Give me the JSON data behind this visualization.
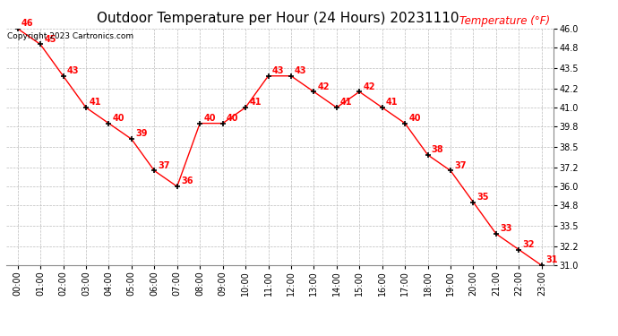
{
  "title": "Outdoor Temperature per Hour (24 Hours) 20231110",
  "copyright_text": "Copyright 2023 Cartronics.com",
  "legend_label": "Temperature (°F)",
  "hours": [
    "00:00",
    "01:00",
    "02:00",
    "03:00",
    "04:00",
    "05:00",
    "06:00",
    "07:00",
    "08:00",
    "09:00",
    "10:00",
    "11:00",
    "12:00",
    "13:00",
    "14:00",
    "15:00",
    "16:00",
    "17:00",
    "18:00",
    "19:00",
    "20:00",
    "21:00",
    "22:00",
    "23:00"
  ],
  "temperatures": [
    46,
    45,
    43,
    41,
    40,
    39,
    37,
    36,
    40,
    40,
    41,
    43,
    43,
    42,
    41,
    42,
    41,
    40,
    38,
    37,
    35,
    33,
    32,
    31
  ],
  "line_color": "#ff0000",
  "marker_color": "#000000",
  "label_color": "#ff0000",
  "grid_color": "#bbbbbb",
  "background_color": "#ffffff",
  "title_fontsize": 11,
  "legend_fontsize": 8.5,
  "copyright_fontsize": 6.5,
  "annotation_fontsize": 7,
  "tick_fontsize": 7,
  "ylim_min": 31.0,
  "ylim_max": 46.0,
  "yticks": [
    31.0,
    32.2,
    33.5,
    34.8,
    36.0,
    37.2,
    38.5,
    39.8,
    41.0,
    42.2,
    43.5,
    44.8,
    46.0
  ]
}
